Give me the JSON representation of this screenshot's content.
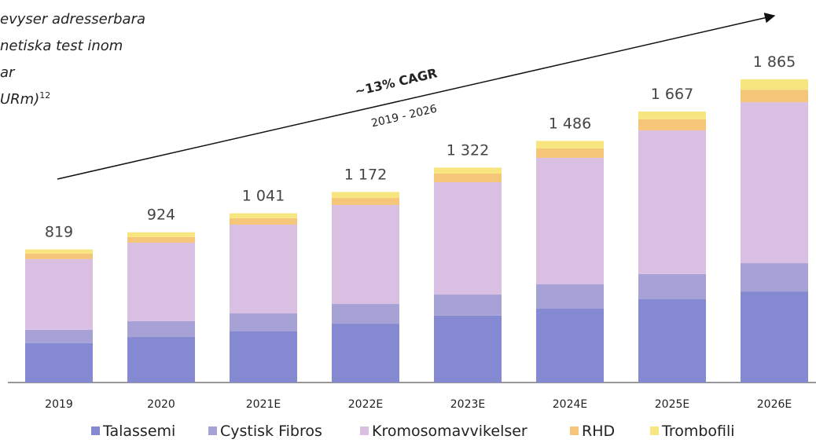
{
  "chart_data": {
    "type": "stacked_bar",
    "title_lines": [
      "evyser adresserbara",
      "netiska test inom",
      "ar",
      "URm)"
    ],
    "title_superscript": "12",
    "annotations": [
      "~13% CAGR",
      "2019 - 2026"
    ],
    "categories": [
      "2019",
      "2020",
      "2021E",
      "2022E",
      "2023E",
      "2024E",
      "2025E",
      "2026E"
    ],
    "series": [
      {
        "name": "Talassemi",
        "color": "#8589d1",
        "values": [
          242,
          280,
          314,
          362,
          411,
          454,
          512,
          560
        ]
      },
      {
        "name": "Cystisk Fibros",
        "color": "#a6a2d6",
        "values": [
          82,
          97,
          111,
          121,
          130,
          150,
          155,
          174
        ]
      },
      {
        "name": "Kromosomavvikelser",
        "color": "#d9c0e3",
        "values": [
          435,
          483,
          546,
          609,
          691,
          778,
          884,
          990
        ]
      },
      {
        "name": "RHD",
        "color": "#f5c57a",
        "values": [
          34,
          34,
          39,
          43,
          53,
          58,
          68,
          77
        ]
      },
      {
        "name": "Trombofili",
        "color": "#f7e680",
        "values": [
          26,
          30,
          31,
          37,
          37,
          46,
          48,
          64
        ]
      }
    ],
    "totals": [
      819,
      924,
      1041,
      1172,
      1322,
      1486,
      1667,
      1865
    ],
    "total_labels": [
      "819",
      "924",
      "1 041",
      "1 172",
      "1 322",
      "1 486",
      "1 667",
      "1 865"
    ],
    "legend": "bottom"
  }
}
